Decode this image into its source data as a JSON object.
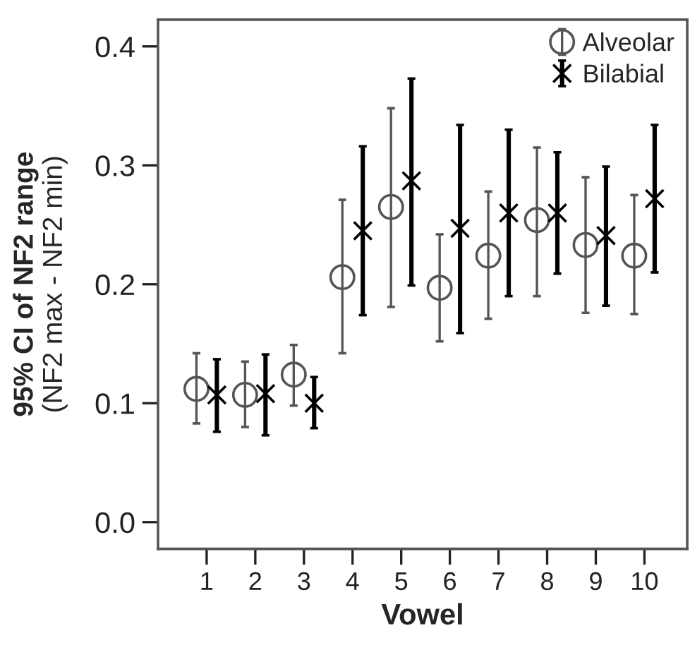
{
  "chart_data": {
    "type": "scatter",
    "xlabel": "Vowel",
    "ylabel": "95% CI of NF2 range\n(NF2 max - NF2 min)",
    "categories": [
      "1",
      "2",
      "3",
      "4",
      "5",
      "6",
      "7",
      "8",
      "9",
      "10"
    ],
    "series": [
      {
        "name": "Alveolar",
        "color": "#555555",
        "marker": "circle",
        "values": [
          0.112,
          0.107,
          0.124,
          0.206,
          0.265,
          0.197,
          0.224,
          0.254,
          0.233,
          0.224
        ],
        "errors": [
          [
            0.083,
            0.142
          ],
          [
            0.08,
            0.135
          ],
          [
            0.098,
            0.149
          ],
          [
            0.142,
            0.271
          ],
          [
            0.181,
            0.348
          ],
          [
            0.152,
            0.242
          ],
          [
            0.171,
            0.278
          ],
          [
            0.19,
            0.315
          ],
          [
            0.176,
            0.29
          ],
          [
            0.175,
            0.275
          ]
        ]
      },
      {
        "name": "Bilabial",
        "color": "#000000",
        "marker": "cross",
        "values": [
          0.107,
          0.108,
          0.1,
          0.245,
          0.287,
          0.247,
          0.26,
          0.26,
          0.241,
          0.272
        ],
        "errors": [
          [
            0.076,
            0.137
          ],
          [
            0.073,
            0.141
          ],
          [
            0.079,
            0.122
          ],
          [
            0.174,
            0.316
          ],
          [
            0.199,
            0.373
          ],
          [
            0.159,
            0.334
          ],
          [
            0.19,
            0.33
          ],
          [
            0.209,
            0.311
          ],
          [
            0.182,
            0.299
          ],
          [
            0.21,
            0.334
          ]
        ]
      }
    ],
    "ylim": [
      -0.0225,
      0.4225
    ],
    "yticks": [
      {
        "value": 0.0,
        "label": "0.0"
      },
      {
        "value": 0.1,
        "label": "0.1"
      },
      {
        "value": 0.2,
        "label": "0.2"
      },
      {
        "value": 0.3,
        "label": "0.3"
      },
      {
        "value": 0.4,
        "label": "0.4"
      }
    ],
    "grid": false,
    "legend": "top right"
  }
}
